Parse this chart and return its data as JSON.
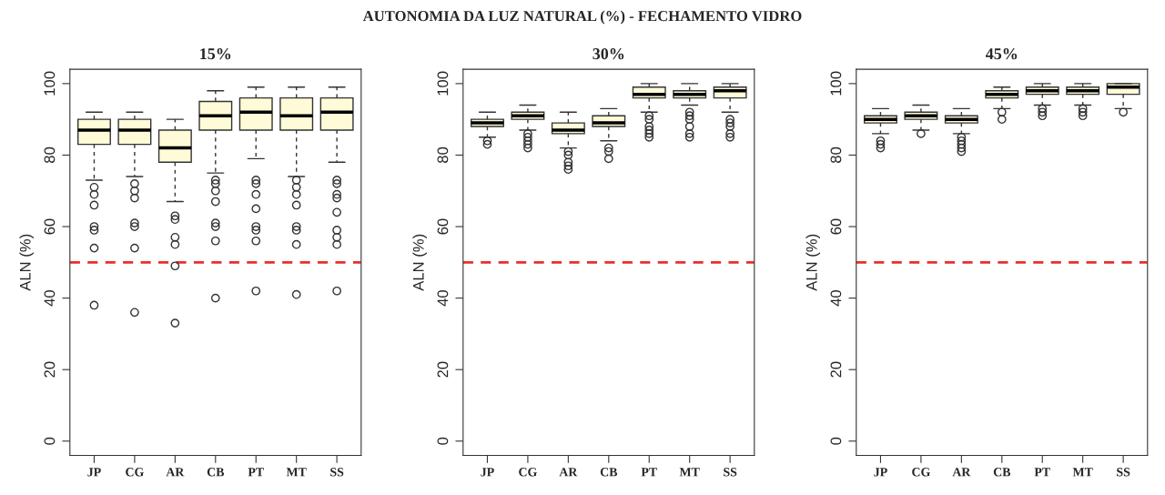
{
  "chart_data": [
    {
      "type": "box",
      "title": "15%",
      "ylabel": "ALN (%)",
      "annotations": [
        "AUTONOMIA DA LUZ NATURAL (%) - FECHAMENTO VIDRO"
      ],
      "categories": [
        "JP",
        "CG",
        "AR",
        "CB",
        "PT",
        "MT",
        "SS"
      ],
      "color": "#fffbd8",
      "ylim": [
        -4,
        104
      ],
      "yticks": [
        0,
        20,
        40,
        60,
        80,
        100
      ],
      "grid": false,
      "ref_lines": [
        {
          "axis": "y",
          "value": 50,
          "color": "#e8302a",
          "line_style": "dashed"
        }
      ],
      "boxes": [
        {
          "low": 73,
          "q1": 83,
          "median": 87,
          "q3": 90,
          "high": 92,
          "outliers": [
            71,
            69,
            66,
            60,
            59,
            54,
            38
          ]
        },
        {
          "low": 74,
          "q1": 83,
          "median": 87,
          "q3": 90,
          "high": 92,
          "outliers": [
            72,
            70,
            68,
            61,
            60,
            54,
            36
          ]
        },
        {
          "low": 67,
          "q1": 78,
          "median": 82,
          "q3": 87,
          "high": 90,
          "outliers": [
            63,
            62,
            57,
            55,
            49,
            33
          ]
        },
        {
          "low": 75,
          "q1": 87,
          "median": 91,
          "q3": 95,
          "high": 98,
          "outliers": [
            73,
            72,
            70,
            67,
            61,
            60,
            56,
            40
          ]
        },
        {
          "low": 79,
          "q1": 87,
          "median": 92,
          "q3": 96,
          "high": 99,
          "outliers": [
            73,
            72,
            69,
            65,
            60,
            59,
            56,
            42
          ]
        },
        {
          "low": 74,
          "q1": 87,
          "median": 91,
          "q3": 96,
          "high": 99,
          "outliers": [
            73,
            71,
            69,
            66,
            60,
            59,
            55,
            41
          ]
        },
        {
          "low": 78,
          "q1": 87,
          "median": 92,
          "q3": 96,
          "high": 99,
          "outliers": [
            73,
            72,
            69,
            68,
            64,
            59,
            57,
            55,
            42
          ]
        }
      ]
    },
    {
      "type": "box",
      "title": "30%",
      "ylabel": "ALN (%)",
      "categories": [
        "JP",
        "CG",
        "AR",
        "CB",
        "PT",
        "MT",
        "SS"
      ],
      "color": "#fffbd8",
      "ylim": [
        -4,
        104
      ],
      "yticks": [
        0,
        20,
        40,
        60,
        80,
        100
      ],
      "grid": false,
      "ref_lines": [
        {
          "axis": "y",
          "value": 50,
          "color": "#e8302a",
          "line_style": "dashed"
        }
      ],
      "boxes": [
        {
          "low": 85,
          "q1": 88,
          "median": 89,
          "q3": 90,
          "high": 92,
          "outliers": [
            84,
            83
          ]
        },
        {
          "low": 87,
          "q1": 90,
          "median": 91,
          "q3": 92,
          "high": 94,
          "outliers": [
            86,
            85,
            84,
            83,
            82
          ]
        },
        {
          "low": 82,
          "q1": 86,
          "median": 87,
          "q3": 89,
          "high": 92,
          "outliers": [
            81,
            80,
            78,
            77,
            76
          ]
        },
        {
          "low": 84,
          "q1": 88,
          "median": 89,
          "q3": 91,
          "high": 93,
          "outliers": [
            82,
            81,
            79
          ]
        },
        {
          "low": 92,
          "q1": 96,
          "median": 97,
          "q3": 99,
          "high": 100,
          "outliers": [
            91,
            90,
            88,
            87,
            86,
            85
          ]
        },
        {
          "low": 94,
          "q1": 96,
          "median": 97,
          "q3": 98,
          "high": 100,
          "outliers": [
            92,
            91,
            90,
            88,
            86,
            85
          ]
        },
        {
          "low": 92,
          "q1": 96,
          "median": 98,
          "q3": 99,
          "high": 100,
          "outliers": [
            90,
            89,
            88,
            86,
            85
          ]
        }
      ]
    },
    {
      "type": "box",
      "title": "45%",
      "ylabel": "ALN (%)",
      "categories": [
        "JP",
        "CG",
        "AR",
        "CB",
        "PT",
        "MT",
        "SS"
      ],
      "color": "#fffbd8",
      "ylim": [
        -4,
        104
      ],
      "yticks": [
        0,
        20,
        40,
        60,
        80,
        100
      ],
      "grid": false,
      "ref_lines": [
        {
          "axis": "y",
          "value": 50,
          "color": "#e8302a",
          "line_style": "dashed"
        }
      ],
      "boxes": [
        {
          "low": 86,
          "q1": 89,
          "median": 90,
          "q3": 91,
          "high": 93,
          "outliers": [
            84,
            83,
            82
          ]
        },
        {
          "low": 87,
          "q1": 90,
          "median": 91,
          "q3": 92,
          "high": 94,
          "outliers": [
            86
          ]
        },
        {
          "low": 86,
          "q1": 89,
          "median": 90,
          "q3": 91,
          "high": 93,
          "outliers": [
            85,
            84,
            83,
            82,
            81
          ]
        },
        {
          "low": 93,
          "q1": 96,
          "median": 97,
          "q3": 98,
          "high": 99,
          "outliers": [
            92,
            90
          ]
        },
        {
          "low": 94,
          "q1": 97,
          "median": 98,
          "q3": 99,
          "high": 100,
          "outliers": [
            93,
            92,
            91
          ]
        },
        {
          "low": 94,
          "q1": 97,
          "median": 98,
          "q3": 99,
          "high": 100,
          "outliers": [
            93,
            92,
            91
          ]
        },
        {
          "low": 93,
          "q1": 97,
          "median": 99,
          "q3": 100,
          "high": 100,
          "outliers": [
            92
          ]
        }
      ]
    }
  ]
}
